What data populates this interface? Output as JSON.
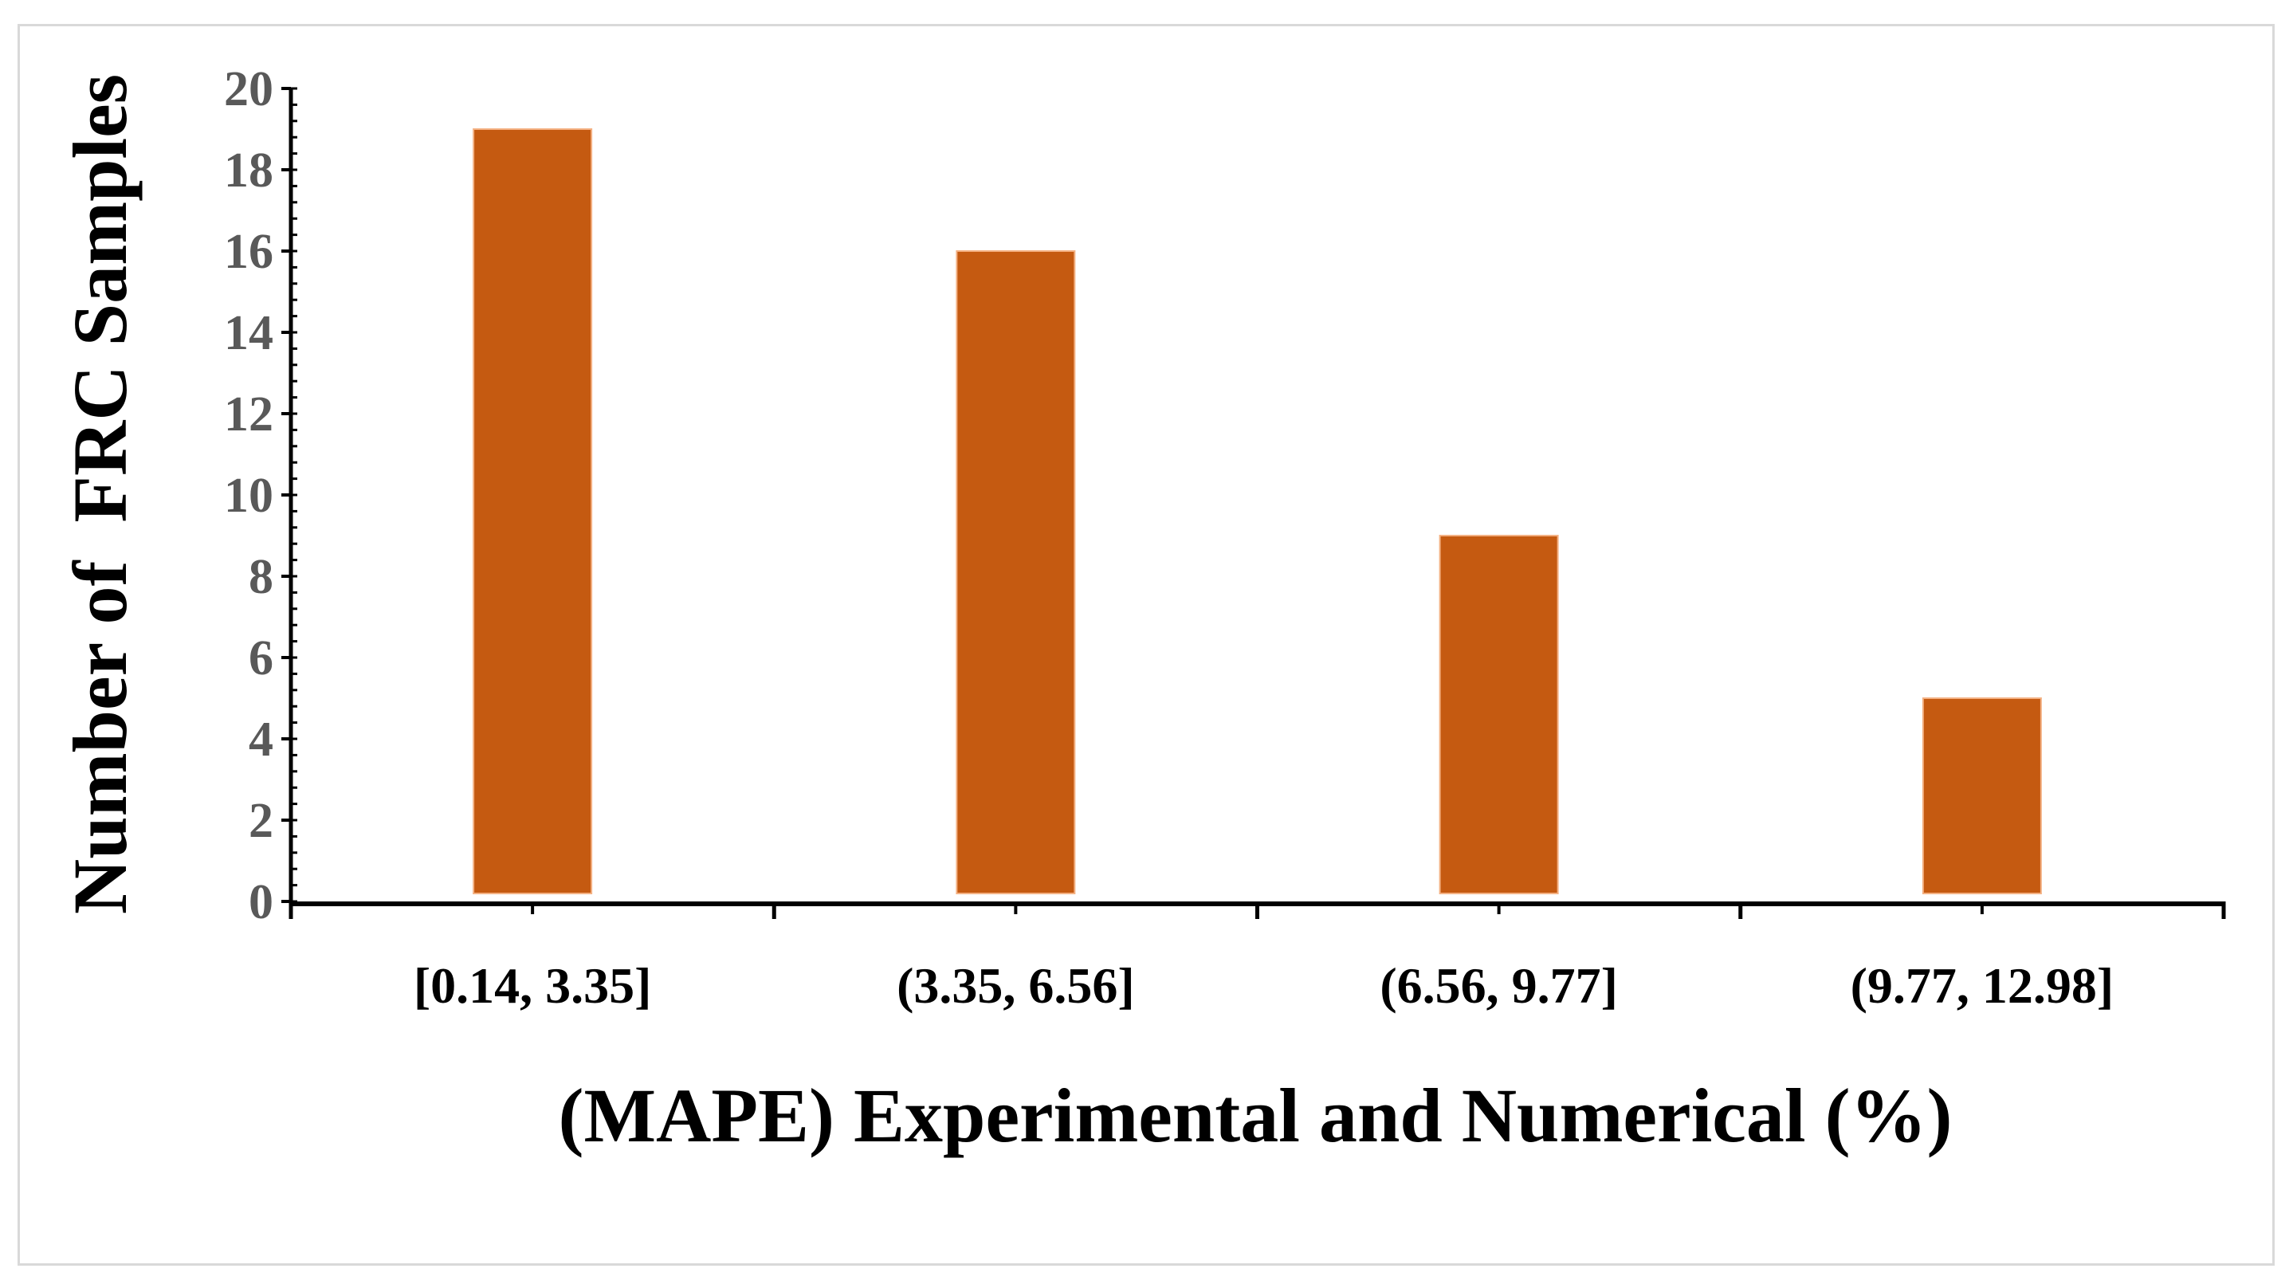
{
  "chart_data": {
    "type": "bar",
    "categories": [
      "[0.14, 3.35]",
      "(3.35, 6.56]",
      "(6.56, 9.77]",
      "(9.77, 12.98]"
    ],
    "values": [
      19,
      16,
      9,
      5
    ],
    "title": "",
    "xlabel": "(MAPE) Experimental and Numerical (%)",
    "ylabel": "Number of  FRC Samples",
    "ylim": [
      0,
      20
    ],
    "yticks": [
      0,
      2,
      4,
      6,
      8,
      10,
      12,
      14,
      16,
      18,
      20
    ],
    "grid": false,
    "legend": "none",
    "bar_color": "#C55A11"
  }
}
